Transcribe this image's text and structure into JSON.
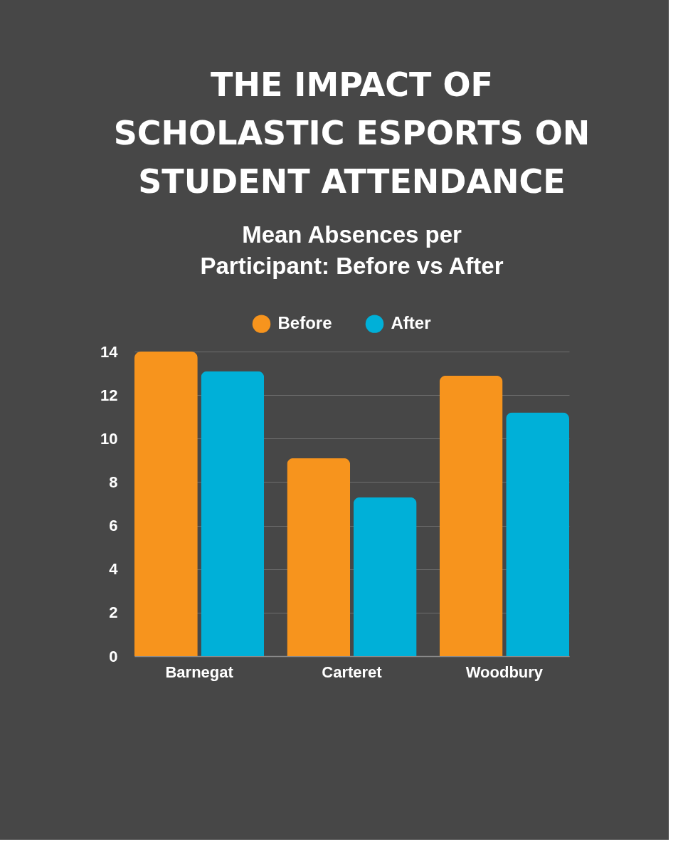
{
  "chart_data": {
    "type": "bar",
    "title": "THE IMPACT OF SCHOLASTIC ESPORTS ON STUDENT ATTENDANCE",
    "subtitle": "Mean Absences per Participant: Before vs After",
    "categories": [
      "Barnegat",
      "Carteret",
      "Woodbury"
    ],
    "series": [
      {
        "name": "Before",
        "color": "#f7941d",
        "values": [
          14.0,
          9.1,
          12.9
        ]
      },
      {
        "name": "After",
        "color": "#00b0d8",
        "values": [
          13.1,
          7.3,
          11.2
        ]
      }
    ],
    "ylim": [
      0,
      14
    ],
    "yticks": [
      0,
      2,
      4,
      6,
      8,
      10,
      12,
      14
    ],
    "grid": "y",
    "legend": "top"
  }
}
